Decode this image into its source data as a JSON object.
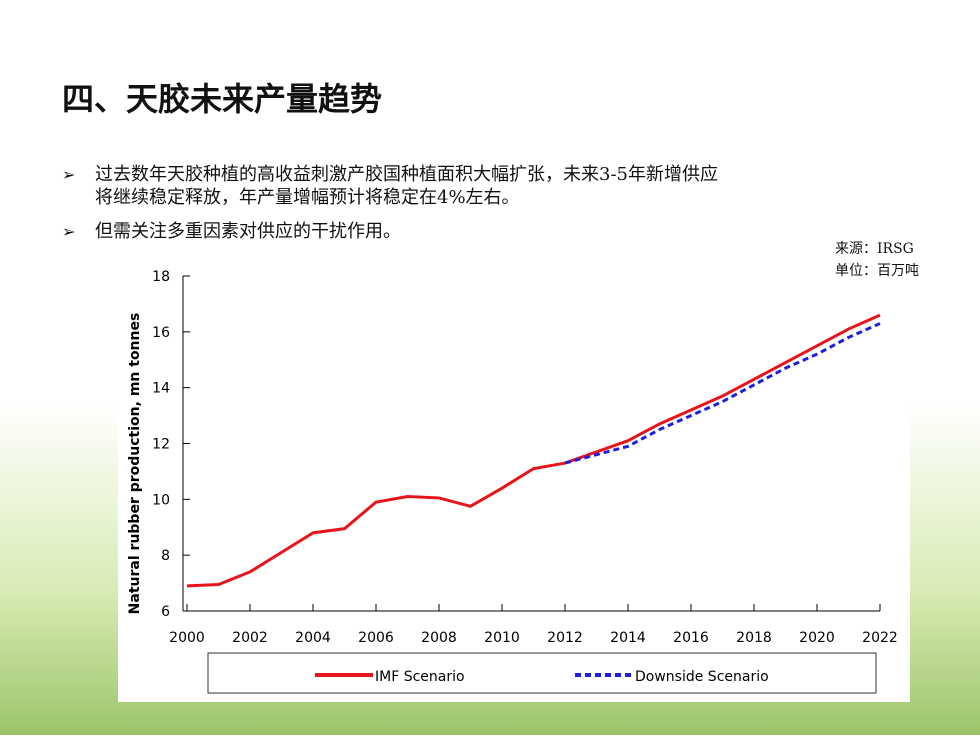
{
  "title": "四、天胶未来产量趋势",
  "bullets": [
    "过去数年天胶种植的高收益刺激产胶国种植面积大幅扩张，未来3-5年新增供应",
    "将继续稳定释放，年产量增幅预计将稳定在4%左右。",
    "但需关注多重因素对供应的干扰作用。"
  ],
  "source": [
    "来源：IRSG",
    "单位：百万吨"
  ],
  "chart_data": {
    "type": "line",
    "ylabel": "Natural rubber production, mn tonnes",
    "x": [
      2000,
      2001,
      2002,
      2003,
      2004,
      2005,
      2006,
      2007,
      2008,
      2009,
      2010,
      2011,
      2012,
      2013,
      2014,
      2015,
      2016,
      2017,
      2018,
      2019,
      2020,
      2021,
      2022
    ],
    "series": [
      {
        "name": "IMF Scenario",
        "color": "#e8141b",
        "dash": false,
        "values": [
          6.9,
          6.95,
          7.4,
          8.1,
          8.8,
          8.95,
          9.9,
          10.1,
          10.05,
          9.75,
          10.4,
          11.1,
          11.3,
          11.7,
          12.1,
          12.7,
          13.2,
          13.7,
          14.3,
          14.9,
          15.5,
          16.1,
          16.6
        ]
      },
      {
        "name": "Downside Scenario",
        "color": "#1f1fe0",
        "dash": true,
        "values": [
          null,
          null,
          null,
          null,
          null,
          null,
          null,
          null,
          null,
          null,
          null,
          null,
          11.3,
          11.6,
          11.9,
          12.5,
          13.0,
          13.5,
          14.1,
          14.7,
          15.2,
          15.8,
          16.3
        ]
      }
    ],
    "xlim": [
      2000,
      2022
    ],
    "xticks": [
      2000,
      2002,
      2004,
      2006,
      2008,
      2010,
      2012,
      2014,
      2016,
      2018,
      2020,
      2022
    ],
    "ylim": [
      6,
      18
    ],
    "yticks": [
      6,
      8,
      10,
      12,
      14,
      16,
      18
    ],
    "legend": "bottom"
  }
}
